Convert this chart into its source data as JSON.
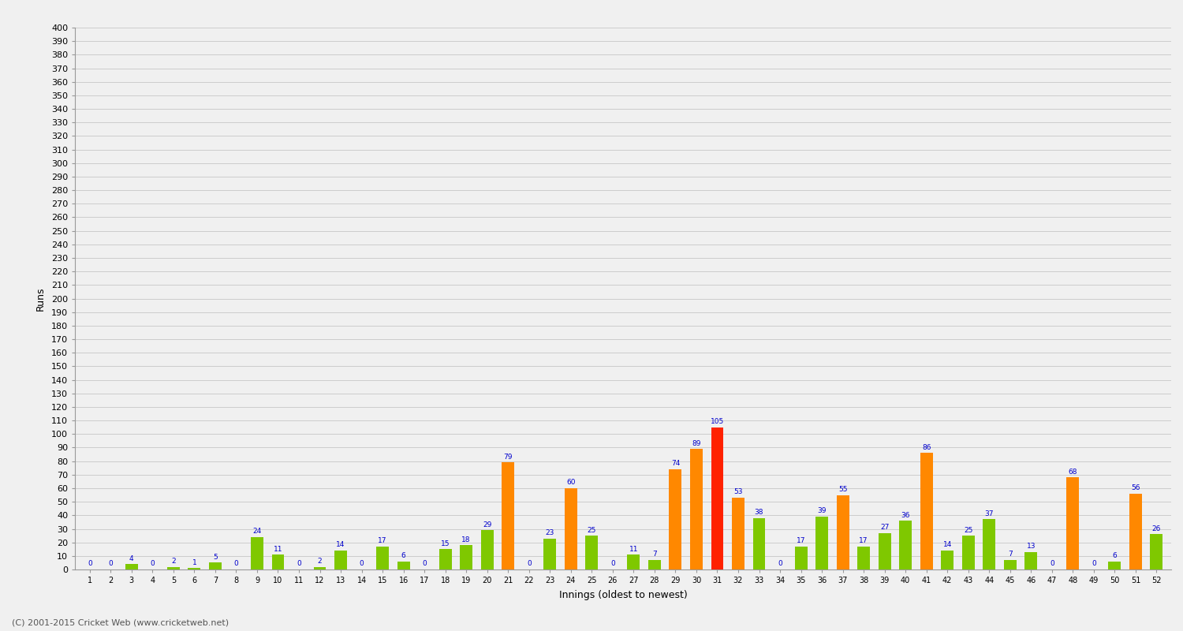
{
  "xlabel": "Innings (oldest to newest)",
  "ylabel": "Runs",
  "values": [
    0,
    0,
    4,
    0,
    2,
    1,
    5,
    0,
    24,
    11,
    0,
    2,
    14,
    0,
    17,
    6,
    0,
    15,
    18,
    29,
    79,
    0,
    23,
    60,
    25,
    0,
    11,
    7,
    74,
    89,
    105,
    53,
    38,
    0,
    17,
    39,
    55,
    17,
    27,
    36,
    86,
    14,
    25,
    37,
    7,
    13,
    0,
    68,
    0,
    6,
    56,
    26
  ],
  "innings": [
    1,
    2,
    3,
    4,
    5,
    6,
    7,
    8,
    9,
    10,
    11,
    12,
    13,
    14,
    15,
    16,
    17,
    18,
    19,
    20,
    21,
    22,
    23,
    24,
    25,
    26,
    27,
    28,
    29,
    30,
    31,
    32,
    33,
    34,
    35,
    36,
    37,
    38,
    39,
    40,
    41,
    42,
    43,
    44,
    45,
    46,
    47,
    48,
    49,
    50,
    51,
    52
  ],
  "fifty_threshold": 50,
  "century_threshold": 100,
  "color_normal": "#7fc800",
  "color_fifty": "#ff8800",
  "color_century": "#ff2200",
  "background_color": "#f0f0f0",
  "grid_color": "#cccccc",
  "label_color": "#0000cc",
  "ylim_max": 400,
  "ytick_interval": 10,
  "footer": "(C) 2001-2015 Cricket Web (www.cricketweb.net)"
}
